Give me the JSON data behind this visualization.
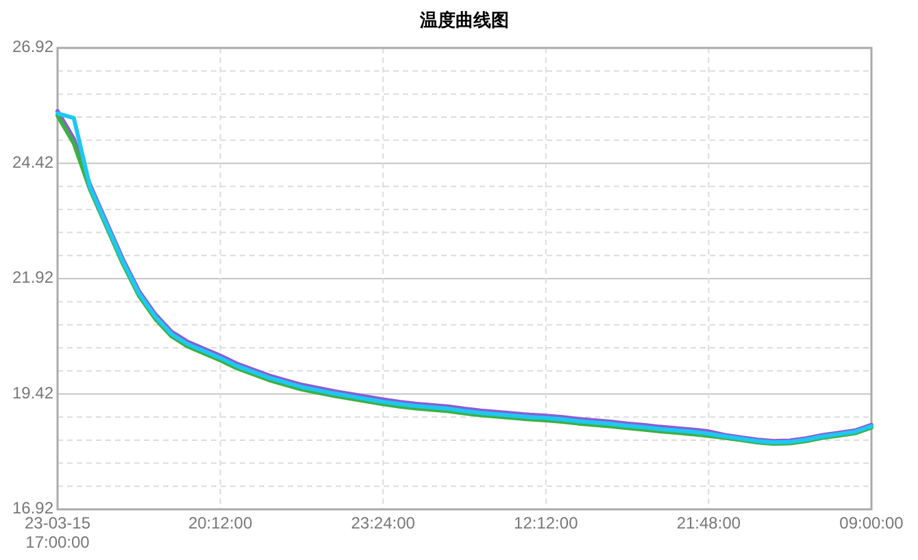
{
  "chart_data": {
    "type": "line",
    "title": "温度曲线图",
    "categories": [
      "23-03-15 17:00:00",
      null,
      null,
      null,
      null,
      null,
      null,
      null,
      null,
      null,
      "20:12:00",
      null,
      null,
      null,
      null,
      null,
      null,
      null,
      null,
      null,
      "23:24:00",
      null,
      null,
      null,
      null,
      null,
      null,
      null,
      null,
      null,
      "12:12:00",
      null,
      null,
      null,
      null,
      null,
      null,
      null,
      null,
      null,
      "21:48:00",
      null,
      null,
      null,
      null,
      null,
      null,
      null,
      null,
      null,
      "09:00:00"
    ],
    "series": [
      {
        "color": "#8a5cd6",
        "values": [
          25.55,
          24.95,
          23.95,
          23.15,
          22.35,
          21.65,
          21.15,
          20.77,
          20.55,
          20.4,
          20.25,
          20.08,
          19.95,
          19.82,
          19.72,
          19.62,
          19.55,
          19.48,
          19.42,
          19.36,
          19.3,
          19.25,
          19.21,
          19.18,
          19.15,
          19.1,
          19.06,
          19.03,
          19,
          18.97,
          18.95,
          18.92,
          18.88,
          18.85,
          18.82,
          18.78,
          18.75,
          18.71,
          18.68,
          18.65,
          18.61,
          18.53,
          18.48,
          18.43,
          18.4,
          18.41,
          18.46,
          18.53,
          18.58,
          18.63,
          18.75
        ]
      },
      {
        "color": "#3cb043",
        "values": [
          25.45,
          24.85,
          23.85,
          23.05,
          22.25,
          21.55,
          21.05,
          20.67,
          20.45,
          20.3,
          20.15,
          19.98,
          19.85,
          19.72,
          19.62,
          19.52,
          19.45,
          19.38,
          19.32,
          19.26,
          19.2,
          19.15,
          19.11,
          19.08,
          19.05,
          19,
          18.96,
          18.93,
          18.9,
          18.87,
          18.85,
          18.82,
          18.78,
          18.75,
          18.72,
          18.68,
          18.65,
          18.61,
          18.58,
          18.55,
          18.51,
          18.47,
          18.42,
          18.37,
          18.34,
          18.35,
          18.4,
          18.47,
          18.52,
          18.57,
          18.69
        ]
      },
      {
        "color": "#1ec8f0",
        "values": [
          25.5,
          25.4,
          23.9,
          23.1,
          22.3,
          21.6,
          21.1,
          20.72,
          20.5,
          20.35,
          20.2,
          20.03,
          19.9,
          19.77,
          19.67,
          19.57,
          19.5,
          19.43,
          19.37,
          19.31,
          19.25,
          19.2,
          19.16,
          19.13,
          19.1,
          19.05,
          19.01,
          18.98,
          18.95,
          18.92,
          18.9,
          18.87,
          18.83,
          18.8,
          18.77,
          18.73,
          18.7,
          18.66,
          18.63,
          18.6,
          18.56,
          18.5,
          18.45,
          18.4,
          18.37,
          18.38,
          18.43,
          18.5,
          18.55,
          18.6,
          18.72
        ]
      }
    ],
    "ylim": [
      16.92,
      26.92
    ],
    "yticks": [
      16.92,
      {
        "value": 17.42,
        "label": null
      },
      {
        "value": 17.92,
        "label": null
      },
      {
        "value": 18.42,
        "label": null
      },
      {
        "value": 18.92,
        "label": null
      },
      19.42,
      {
        "value": 19.92,
        "label": null
      },
      {
        "value": 20.42,
        "label": null
      },
      {
        "value": 20.92,
        "label": null
      },
      {
        "value": 21.42,
        "label": null
      },
      21.92,
      {
        "value": 22.42,
        "label": null
      },
      {
        "value": 22.92,
        "label": null
      },
      {
        "value": 23.42,
        "label": null
      },
      {
        "value": 23.92,
        "label": null
      },
      24.42,
      {
        "value": 24.92,
        "label": null
      },
      {
        "value": 25.42,
        "label": null
      },
      {
        "value": 25.92,
        "label": null
      },
      {
        "value": 26.42,
        "label": null
      },
      26.92
    ],
    "grid": true
  }
}
